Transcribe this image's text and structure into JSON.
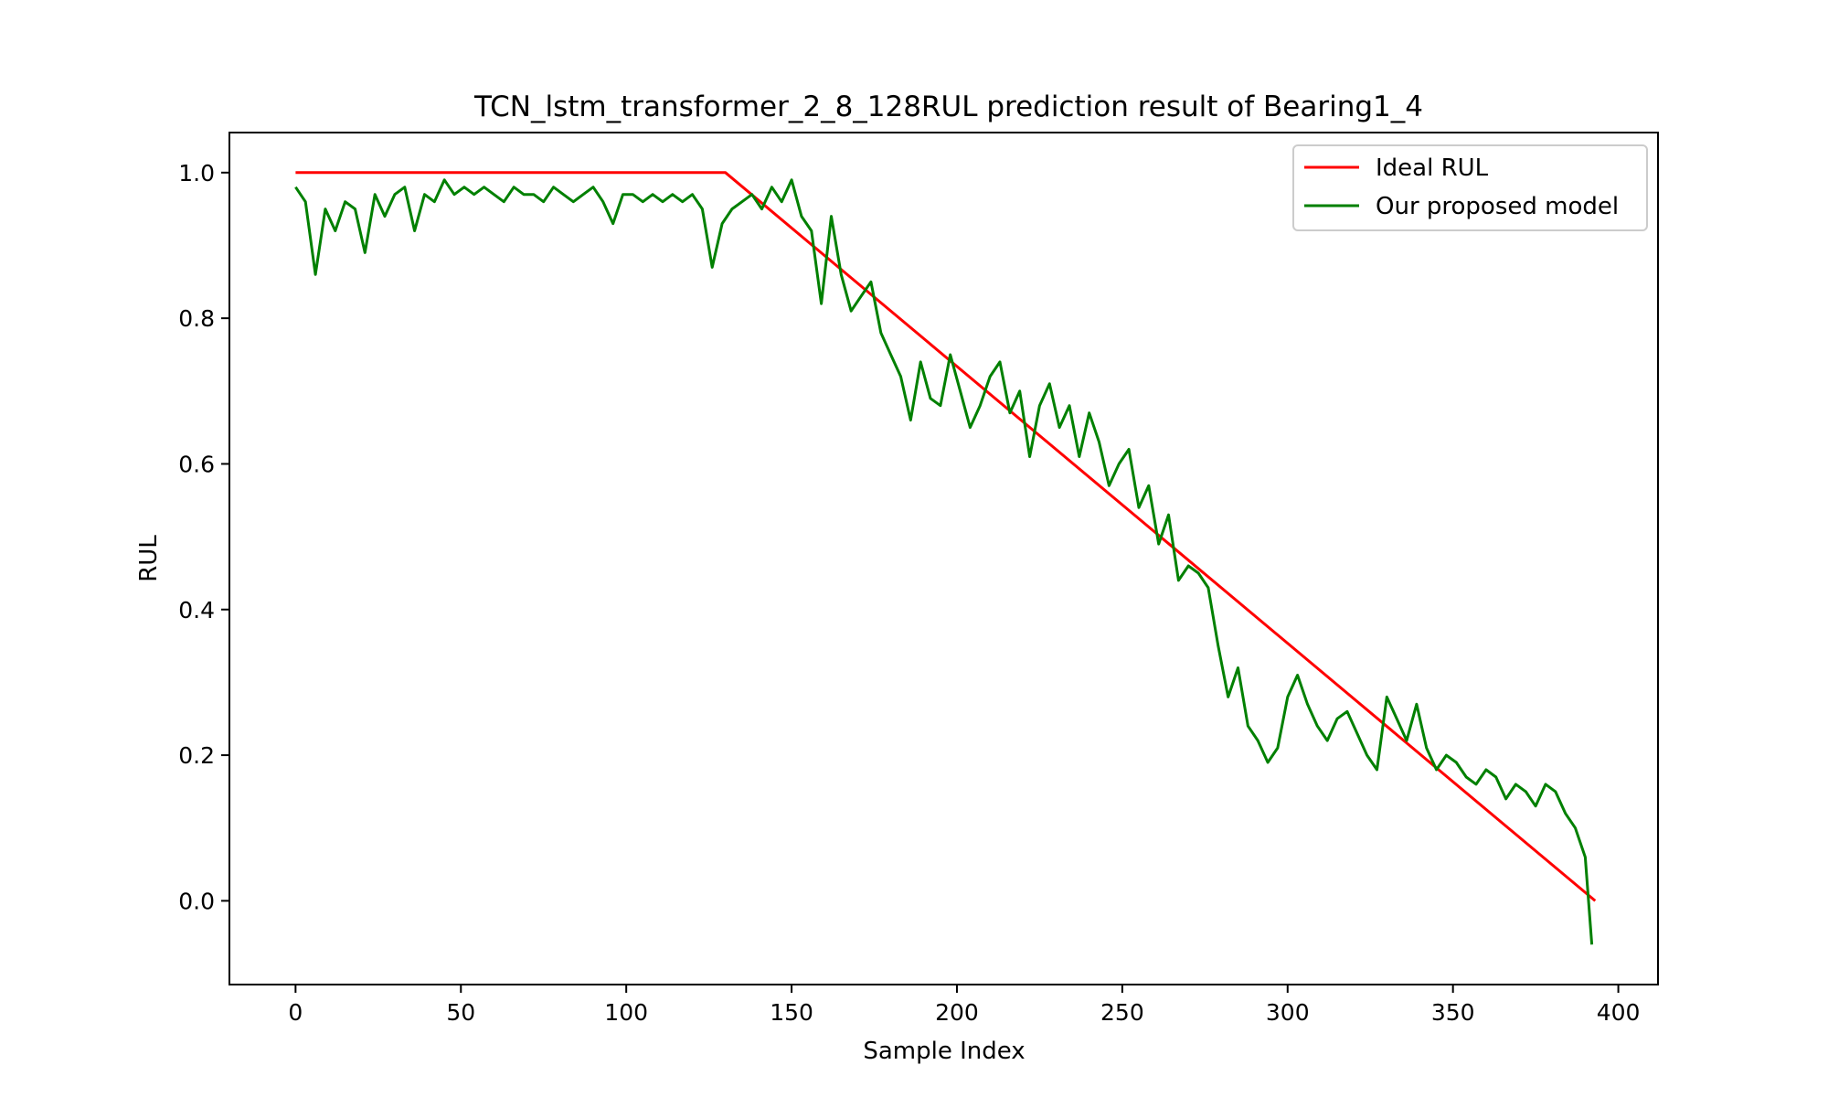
{
  "chart_data": {
    "type": "line",
    "title": "TCN_lstm_transformer_2_8_128RUL prediction result of Bearing1_4",
    "xlabel": "Sample Index",
    "ylabel": "RUL",
    "xlim": [
      -20,
      412
    ],
    "ylim": [
      -0.115,
      1.055
    ],
    "xticks": [
      0,
      50,
      100,
      150,
      200,
      250,
      300,
      350,
      400
    ],
    "yticks": [
      0.0,
      0.2,
      0.4,
      0.6,
      0.8,
      1.0
    ],
    "xtick_labels": [
      "0",
      "50",
      "100",
      "150",
      "200",
      "250",
      "300",
      "350",
      "400"
    ],
    "ytick_labels": [
      "0.0",
      "0.2",
      "0.4",
      "0.6",
      "0.8",
      "1.0"
    ],
    "grid": false,
    "legend_position": "upper right",
    "series": [
      {
        "name": "Ideal RUL",
        "color": "#ff0000",
        "x": [
          0,
          130,
          393
        ],
        "y": [
          1.0,
          1.0,
          0.0
        ]
      },
      {
        "name": "Our proposed model",
        "color": "#008000",
        "sample_interval": 3,
        "x": [
          0,
          3,
          6,
          9,
          12,
          15,
          18,
          21,
          24,
          27,
          30,
          33,
          36,
          39,
          42,
          45,
          48,
          51,
          54,
          57,
          60,
          63,
          66,
          69,
          72,
          75,
          78,
          81,
          84,
          87,
          90,
          93,
          96,
          99,
          102,
          105,
          108,
          111,
          114,
          117,
          120,
          123,
          126,
          129,
          132,
          135,
          138,
          141,
          144,
          147,
          150,
          153,
          156,
          159,
          162,
          165,
          168,
          171,
          174,
          177,
          180,
          183,
          186,
          189,
          192,
          195,
          198,
          201,
          204,
          207,
          210,
          213,
          216,
          219,
          222,
          225,
          228,
          231,
          234,
          237,
          240,
          243,
          246,
          249,
          252,
          255,
          258,
          261,
          264,
          267,
          270,
          273,
          276,
          279,
          282,
          285,
          288,
          291,
          294,
          297,
          300,
          303,
          306,
          309,
          312,
          315,
          318,
          321,
          324,
          327,
          330,
          333,
          336,
          339,
          342,
          345,
          348,
          351,
          354,
          357,
          360,
          363,
          366,
          369,
          372,
          375,
          378,
          381,
          384,
          387,
          390,
          392
        ],
        "y": [
          0.98,
          0.96,
          0.86,
          0.95,
          0.92,
          0.96,
          0.95,
          0.89,
          0.97,
          0.94,
          0.97,
          0.98,
          0.92,
          0.97,
          0.96,
          0.99,
          0.97,
          0.98,
          0.97,
          0.98,
          0.97,
          0.96,
          0.98,
          0.97,
          0.97,
          0.96,
          0.98,
          0.97,
          0.96,
          0.97,
          0.98,
          0.96,
          0.93,
          0.97,
          0.97,
          0.96,
          0.97,
          0.96,
          0.97,
          0.96,
          0.97,
          0.95,
          0.87,
          0.93,
          0.95,
          0.96,
          0.97,
          0.95,
          0.98,
          0.96,
          0.99,
          0.94,
          0.92,
          0.82,
          0.94,
          0.86,
          0.81,
          0.83,
          0.85,
          0.78,
          0.75,
          0.72,
          0.66,
          0.74,
          0.69,
          0.68,
          0.75,
          0.7,
          0.65,
          0.68,
          0.72,
          0.74,
          0.67,
          0.7,
          0.61,
          0.68,
          0.71,
          0.65,
          0.68,
          0.61,
          0.67,
          0.63,
          0.57,
          0.6,
          0.62,
          0.54,
          0.57,
          0.49,
          0.53,
          0.44,
          0.46,
          0.45,
          0.43,
          0.35,
          0.28,
          0.32,
          0.24,
          0.22,
          0.19,
          0.21,
          0.28,
          0.31,
          0.27,
          0.24,
          0.22,
          0.25,
          0.26,
          0.23,
          0.2,
          0.18,
          0.28,
          0.25,
          0.22,
          0.27,
          0.21,
          0.18,
          0.2,
          0.19,
          0.17,
          0.16,
          0.18,
          0.17,
          0.14,
          0.16,
          0.15,
          0.13,
          0.16,
          0.15,
          0.12,
          0.1,
          0.06,
          -0.06
        ]
      }
    ]
  }
}
